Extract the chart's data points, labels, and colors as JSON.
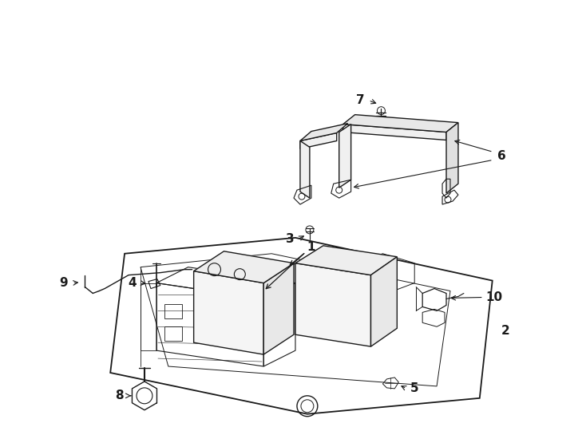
{
  "bg_color": "#ffffff",
  "line_color": "#1a1a1a",
  "lw": 1.0,
  "figsize": [
    7.34,
    5.4
  ],
  "dpi": 100,
  "label_fs": 11,
  "label_fw": "bold"
}
